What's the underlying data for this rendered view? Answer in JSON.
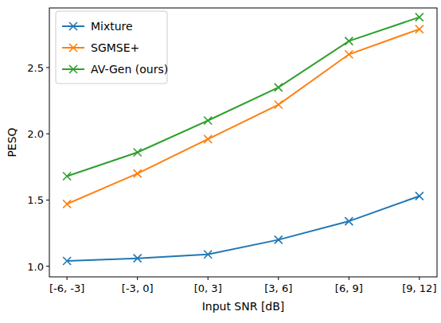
{
  "chart_data": {
    "type": "line",
    "x_label": "Input SNR [dB]",
    "y_label": "PESQ",
    "categories": [
      "[-6, -3]",
      "[-3, 0]",
      "[0, 3]",
      "[3, 6]",
      "[6, 9]",
      "[9, 12]"
    ],
    "series": [
      {
        "name": "Mixture",
        "color": "#1f77b4",
        "marker": "x",
        "values": [
          1.04,
          1.06,
          1.09,
          1.2,
          1.34,
          1.53
        ]
      },
      {
        "name": "SGMSE+",
        "color": "#ff7f0e",
        "marker": "x",
        "values": [
          1.47,
          1.7,
          1.96,
          2.22,
          2.6,
          2.79
        ]
      },
      {
        "name": "AV-Gen (ours)",
        "color": "#2ca02c",
        "marker": "x",
        "values": [
          1.68,
          1.86,
          2.1,
          2.35,
          2.7,
          2.88
        ]
      }
    ],
    "ylim": [
      0.92,
      2.95
    ],
    "yticks": [
      {
        "value": 1,
        "label": "1.0"
      },
      {
        "value": 1.5,
        "label": "1.5"
      },
      {
        "value": 2,
        "label": "2.0"
      },
      {
        "value": 2.5,
        "label": "2.5"
      }
    ],
    "grid": false,
    "legend": "upper-left"
  }
}
